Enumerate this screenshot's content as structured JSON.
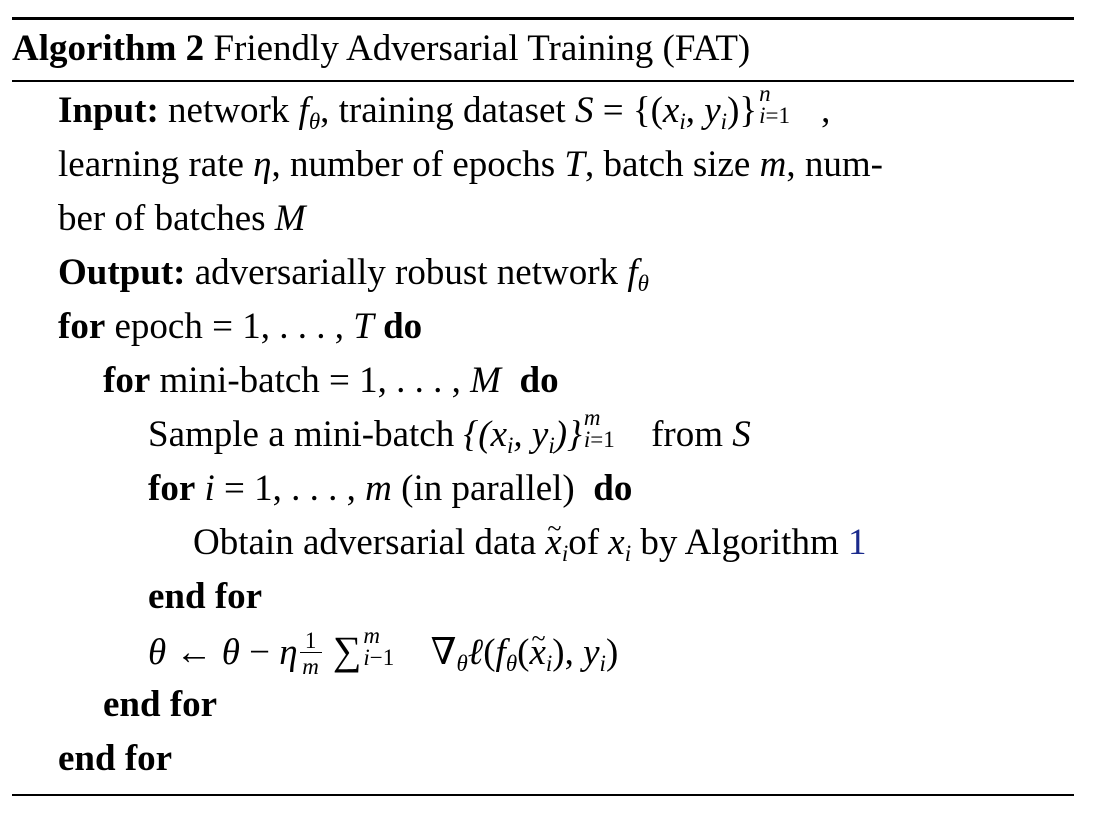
{
  "algorithm": {
    "label": "Algorithm 2",
    "name": "Friendly Adversarial Training (FAT)"
  },
  "input": {
    "keyword": "Input:",
    "line1_text": "network",
    "line1_sym": "f",
    "line1_sub": "θ",
    "line1_text2": ", training dataset",
    "line1_set": "S = {(x",
    "line2": "learning rate η, number of epochs T, batch size m, num-",
    "line3": "ber of batches M"
  },
  "output": {
    "keyword": "Output:",
    "text": "adversarially robust network f",
    "sub": "θ"
  },
  "loop1": {
    "keyword_for": "for",
    "text": "epoch = 1, . . . , T",
    "keyword_do": "do"
  },
  "loop2": {
    "keyword_for": "for",
    "text": "mini-batch = 1, . . . , M",
    "keyword_do": "do"
  },
  "sample": {
    "text": "Sample a mini-batch",
    "from": "from"
  },
  "loop3": {
    "keyword_for": "for",
    "text_suffix": "(in parallel)",
    "keyword_do": "do"
  },
  "obtain": {
    "text": "Obtain adversarial data",
    "of": "of",
    "by": "by Algorithm",
    "ref": "1"
  },
  "end_for_label": "end for",
  "update": {
    "formula": "θ ← θ − η"
  }
}
